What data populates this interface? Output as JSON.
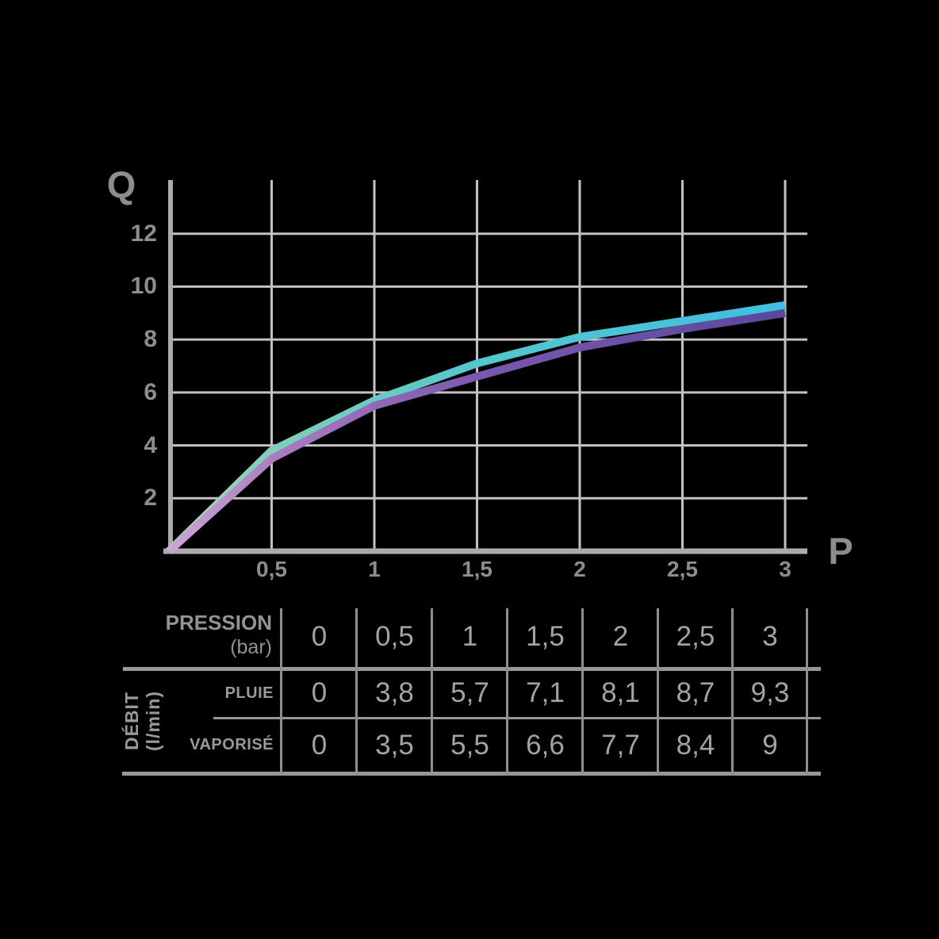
{
  "chart": {
    "y_axis_title": "Q",
    "x_axis_title": "P",
    "x_tick_labels": [
      {
        "v": 0.5,
        "label": "0,5"
      },
      {
        "v": 1,
        "label": "1"
      },
      {
        "v": 1.5,
        "label": "1,5"
      },
      {
        "v": 2,
        "label": "2"
      },
      {
        "v": 2.5,
        "label": "2,5"
      },
      {
        "v": 3,
        "label": "3"
      }
    ],
    "y_tick_labels": [
      {
        "v": 2,
        "label": "2"
      },
      {
        "v": 4,
        "label": "4"
      },
      {
        "v": 6,
        "label": "6"
      },
      {
        "v": 8,
        "label": "8"
      },
      {
        "v": 10,
        "label": "10"
      },
      {
        "v": 12,
        "label": "12"
      }
    ]
  },
  "chart_data": {
    "type": "line",
    "x": [
      0,
      0.5,
      1,
      1.5,
      2,
      2.5,
      3
    ],
    "series": [
      {
        "name": "PLUIE",
        "values": [
          0,
          3.8,
          5.7,
          7.1,
          8.1,
          8.7,
          9.3
        ],
        "gradient": [
          "#a8d8b7",
          "#7fceba",
          "#55c6cc",
          "#40bfe2"
        ]
      },
      {
        "name": "VAPORISÉ",
        "values": [
          0,
          3.5,
          5.5,
          6.6,
          7.7,
          8.4,
          9
        ],
        "gradient": [
          "#cda6d4",
          "#a87cc0",
          "#7a58ae",
          "#5a489b"
        ]
      }
    ],
    "xlabel": "P (bar)",
    "ylabel": "Q (l/min)",
    "xlim": [
      0,
      3
    ],
    "ylim": [
      0,
      14
    ],
    "grid": true,
    "legend_position": "none"
  },
  "table": {
    "header": {
      "title": "PRESSION",
      "unit": "(bar)",
      "values": [
        "0",
        "0,5",
        "1",
        "1,5",
        "2",
        "2,5",
        "3"
      ]
    },
    "group": {
      "title": "DÉBIT",
      "unit": "(l/min)"
    },
    "rows": [
      {
        "label": "PLUIE",
        "values": [
          "0",
          "3,8",
          "5,7",
          "7,1",
          "8,1",
          "8,7",
          "9,3"
        ]
      },
      {
        "label": "VAPORISÉ",
        "values": [
          "0",
          "3,5",
          "5,5",
          "6,6",
          "7,7",
          "8,4",
          "9"
        ]
      }
    ]
  },
  "colors": {
    "background": "#000000",
    "grid": "#c2c2c2",
    "axis": "#ababab",
    "table_line": "#8f8f8f",
    "pluie_end": "#40bfe2",
    "vaporise_end": "#5a489b"
  }
}
